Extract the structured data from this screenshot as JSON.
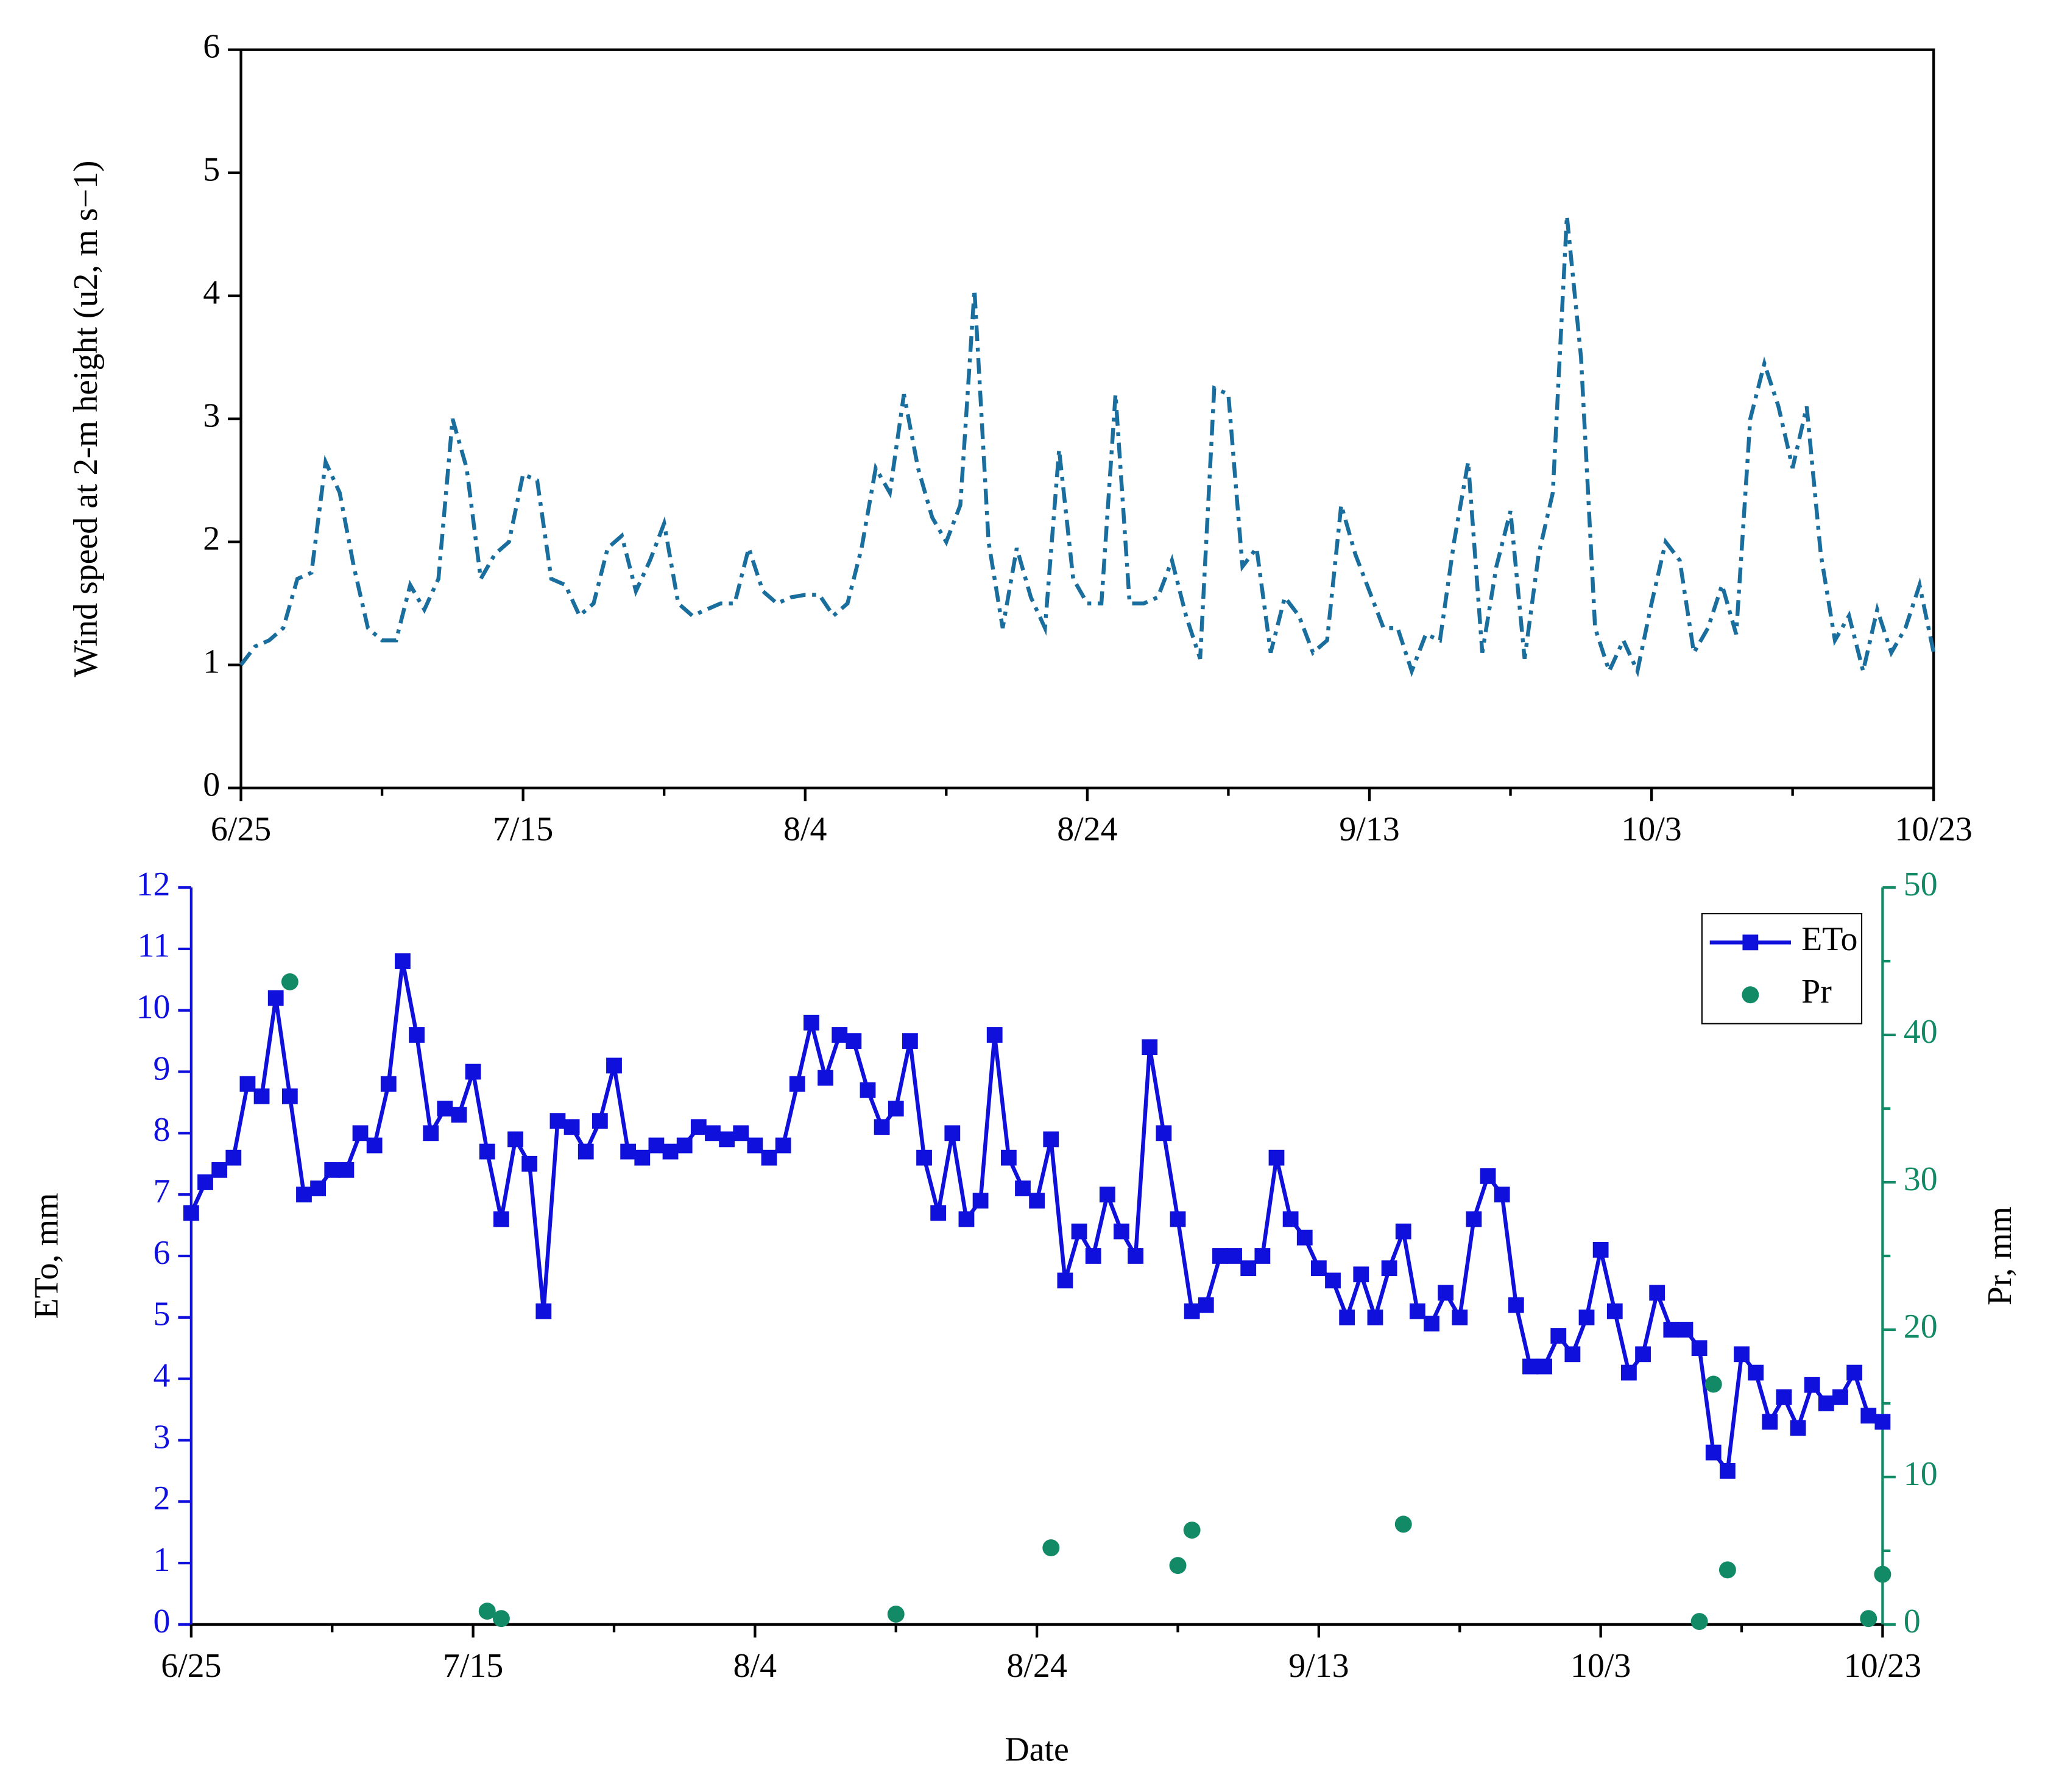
{
  "chart_data": [
    {
      "type": "line",
      "ylabel": "Wind speed at 2-m height (u2, m s−1)",
      "x": [
        "6/25",
        "6/26",
        "6/27",
        "6/28",
        "6/29",
        "6/30",
        "7/1",
        "7/2",
        "7/3",
        "7/4",
        "7/5",
        "7/6",
        "7/7",
        "7/8",
        "7/9",
        "7/10",
        "7/11",
        "7/12",
        "7/13",
        "7/14",
        "7/15",
        "7/16",
        "7/17",
        "7/18",
        "7/19",
        "7/20",
        "7/21",
        "7/22",
        "7/23",
        "7/24",
        "7/25",
        "7/26",
        "7/27",
        "7/28",
        "7/29",
        "7/30",
        "7/31",
        "8/1",
        "8/2",
        "8/3",
        "8/4",
        "8/5",
        "8/6",
        "8/7",
        "8/8",
        "8/9",
        "8/10",
        "8/11",
        "8/12",
        "8/13",
        "8/14",
        "8/15",
        "8/16",
        "8/17",
        "8/18",
        "8/19",
        "8/20",
        "8/21",
        "8/22",
        "8/23",
        "8/24",
        "8/25",
        "8/26",
        "8/27",
        "8/28",
        "8/29",
        "8/30",
        "8/31",
        "9/1",
        "9/2",
        "9/3",
        "9/4",
        "9/5",
        "9/6",
        "9/7",
        "9/8",
        "9/9",
        "9/10",
        "9/11",
        "9/12",
        "9/13",
        "9/14",
        "9/15",
        "9/16",
        "9/17",
        "9/18",
        "9/19",
        "9/20",
        "9/21",
        "9/22",
        "9/23",
        "9/24",
        "9/25",
        "9/26",
        "9/27",
        "9/28",
        "9/29",
        "9/30",
        "10/1",
        "10/2",
        "10/3",
        "10/4",
        "10/5",
        "10/6",
        "10/7",
        "10/8",
        "10/9",
        "10/10",
        "10/11",
        "10/12",
        "10/13",
        "10/14",
        "10/15",
        "10/16",
        "10/17",
        "10/18",
        "10/19",
        "10/20",
        "10/21",
        "10/22",
        "10/23"
      ],
      "xticks": [
        "6/25",
        "7/15",
        "8/4",
        "8/24",
        "9/13",
        "10/3",
        "10/23"
      ],
      "ylim": [
        0,
        6
      ],
      "yticks": [
        0,
        1,
        2,
        3,
        4,
        5,
        6
      ],
      "series": [
        {
          "color": "#1a6e9e",
          "line_style": "dashdot",
          "values": [
            1.0,
            1.15,
            1.2,
            1.3,
            1.7,
            1.75,
            2.65,
            2.4,
            1.8,
            1.3,
            1.2,
            1.2,
            1.65,
            1.45,
            1.7,
            3.0,
            2.6,
            1.7,
            1.9,
            2.0,
            2.55,
            2.5,
            1.7,
            1.65,
            1.4,
            1.5,
            1.95,
            2.05,
            1.6,
            1.85,
            2.15,
            1.5,
            1.4,
            1.45,
            1.5,
            1.5,
            1.95,
            1.6,
            1.5,
            1.55,
            1.57,
            1.57,
            1.4,
            1.5,
            1.95,
            2.6,
            2.4,
            3.2,
            2.6,
            2.2,
            2.0,
            2.3,
            4.05,
            2.0,
            1.3,
            1.95,
            1.55,
            1.3,
            2.75,
            1.7,
            1.5,
            1.5,
            3.2,
            1.5,
            1.5,
            1.55,
            1.85,
            1.4,
            1.05,
            3.25,
            3.2,
            1.8,
            1.95,
            1.1,
            1.55,
            1.4,
            1.1,
            1.2,
            2.3,
            1.9,
            1.6,
            1.3,
            1.3,
            0.95,
            1.25,
            1.2,
            2.0,
            2.65,
            1.1,
            1.8,
            2.25,
            1.05,
            1.9,
            2.4,
            4.65,
            3.5,
            1.3,
            0.95,
            1.2,
            0.95,
            1.5,
            2.0,
            1.85,
            1.1,
            1.3,
            1.65,
            1.25,
            3.0,
            3.45,
            3.1,
            2.6,
            3.1,
            1.9,
            1.2,
            1.4,
            0.95,
            1.45,
            1.1,
            1.3,
            1.65,
            1.1
          ]
        }
      ]
    },
    {
      "type": "line",
      "xlabel": "Date",
      "ylabel": "ETo, mm",
      "y2label": "Pr, mm",
      "x": [
        "6/25",
        "6/26",
        "6/27",
        "6/28",
        "6/29",
        "6/30",
        "7/1",
        "7/2",
        "7/3",
        "7/4",
        "7/5",
        "7/6",
        "7/7",
        "7/8",
        "7/9",
        "7/10",
        "7/11",
        "7/12",
        "7/13",
        "7/14",
        "7/15",
        "7/16",
        "7/17",
        "7/18",
        "7/19",
        "7/20",
        "7/21",
        "7/22",
        "7/23",
        "7/24",
        "7/25",
        "7/26",
        "7/27",
        "7/28",
        "7/29",
        "7/30",
        "7/31",
        "8/1",
        "8/2",
        "8/3",
        "8/4",
        "8/5",
        "8/6",
        "8/7",
        "8/8",
        "8/9",
        "8/10",
        "8/11",
        "8/12",
        "8/13",
        "8/14",
        "8/15",
        "8/16",
        "8/17",
        "8/18",
        "8/19",
        "8/20",
        "8/21",
        "8/22",
        "8/23",
        "8/24",
        "8/25",
        "8/26",
        "8/27",
        "8/28",
        "8/29",
        "8/30",
        "8/31",
        "9/1",
        "9/2",
        "9/3",
        "9/4",
        "9/5",
        "9/6",
        "9/7",
        "9/8",
        "9/9",
        "9/10",
        "9/11",
        "9/12",
        "9/13",
        "9/14",
        "9/15",
        "9/16",
        "9/17",
        "9/18",
        "9/19",
        "9/20",
        "9/21",
        "9/22",
        "9/23",
        "9/24",
        "9/25",
        "9/26",
        "9/27",
        "9/28",
        "9/29",
        "9/30",
        "10/1",
        "10/2",
        "10/3",
        "10/4",
        "10/5",
        "10/6",
        "10/7",
        "10/8",
        "10/9",
        "10/10",
        "10/11",
        "10/12",
        "10/13",
        "10/14",
        "10/15",
        "10/16",
        "10/17",
        "10/18",
        "10/19",
        "10/20",
        "10/21",
        "10/22",
        "10/23"
      ],
      "xticks": [
        "6/25",
        "7/15",
        "8/4",
        "8/24",
        "9/13",
        "10/3",
        "10/23"
      ],
      "ylim": [
        0,
        12
      ],
      "yticks": [
        0,
        1,
        2,
        3,
        4,
        5,
        6,
        7,
        8,
        9,
        10,
        11,
        12
      ],
      "y2lim": [
        0,
        50
      ],
      "y2ticks": [
        0,
        10,
        20,
        30,
        40,
        50
      ],
      "legend": "upper right",
      "series": [
        {
          "name": "ETo",
          "type": "line",
          "marker": "square",
          "color": "#1010dd",
          "values": [
            6.7,
            7.2,
            7.4,
            7.6,
            8.8,
            8.6,
            10.2,
            8.6,
            7.0,
            7.1,
            7.4,
            7.4,
            8.0,
            7.8,
            8.8,
            10.8,
            9.6,
            8.0,
            8.4,
            8.3,
            9.0,
            7.7,
            6.6,
            7.9,
            7.5,
            5.1,
            8.2,
            8.1,
            7.7,
            8.2,
            9.1,
            7.7,
            7.6,
            7.8,
            7.7,
            7.8,
            8.1,
            8.0,
            7.9,
            8.0,
            7.8,
            7.6,
            7.8,
            8.8,
            9.8,
            8.9,
            9.6,
            9.5,
            8.7,
            8.1,
            8.4,
            9.5,
            7.6,
            6.7,
            8.0,
            6.6,
            6.9,
            9.6,
            7.6,
            7.1,
            6.9,
            7.9,
            5.6,
            6.4,
            6.0,
            7.0,
            6.4,
            6.0,
            9.4,
            8.0,
            6.6,
            5.1,
            5.2,
            6.0,
            6.0,
            5.8,
            6.0,
            7.6,
            6.6,
            6.3,
            5.8,
            5.6,
            5.0,
            5.7,
            5.0,
            5.8,
            6.4,
            5.1,
            4.9,
            5.4,
            5.0,
            6.6,
            7.3,
            7.0,
            5.2,
            4.2,
            4.2,
            4.7,
            4.4,
            5.0,
            6.1,
            5.1,
            4.1,
            4.4,
            5.4,
            4.8,
            4.8,
            4.5,
            2.8,
            2.5,
            4.4,
            4.1,
            3.3,
            3.7,
            3.2,
            3.9,
            3.6,
            3.7,
            4.1,
            3.4,
            3.3
          ]
        },
        {
          "name": "Pr",
          "type": "scatter",
          "axis": "y2",
          "color": "#138a66",
          "values": [
            null,
            null,
            null,
            null,
            null,
            null,
            null,
            43.6,
            null,
            null,
            null,
            null,
            null,
            null,
            null,
            null,
            null,
            null,
            null,
            null,
            null,
            0.9,
            0.4,
            null,
            null,
            null,
            null,
            null,
            null,
            null,
            null,
            null,
            null,
            null,
            null,
            null,
            null,
            null,
            null,
            null,
            null,
            null,
            null,
            null,
            null,
            null,
            null,
            null,
            null,
            null,
            0.7,
            null,
            null,
            null,
            null,
            null,
            null,
            null,
            null,
            null,
            null,
            5.2,
            null,
            null,
            null,
            null,
            null,
            null,
            null,
            null,
            4.0,
            6.4,
            null,
            null,
            null,
            null,
            null,
            null,
            null,
            null,
            null,
            null,
            null,
            null,
            null,
            null,
            6.8,
            null,
            null,
            null,
            null,
            null,
            null,
            null,
            null,
            null,
            null,
            null,
            null,
            null,
            null,
            null,
            null,
            null,
            null,
            null,
            null,
            0.2,
            16.3,
            3.7,
            null,
            null,
            null,
            null,
            null,
            null,
            null,
            null,
            null,
            0.4,
            3.4
          ]
        }
      ]
    }
  ]
}
